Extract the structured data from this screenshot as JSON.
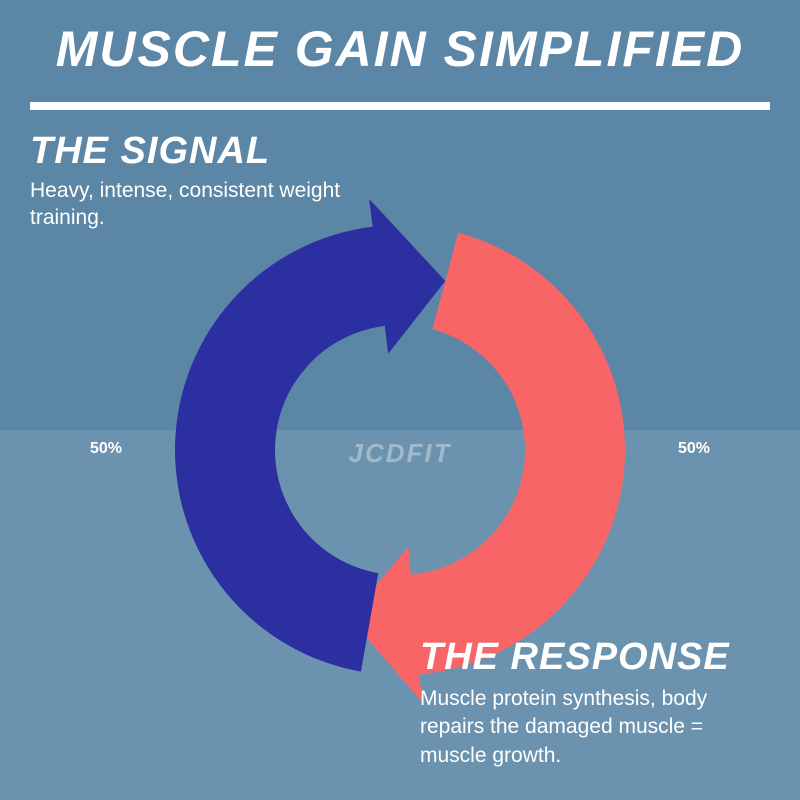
{
  "title": "MUSCLE GAIN SIMPLIFIED",
  "title_fontsize": 50,
  "signal": {
    "heading": "THE SIGNAL",
    "heading_fontsize": 38,
    "desc": "Heavy, intense, consistent weight training.",
    "desc_fontsize": 21
  },
  "response": {
    "heading": "THE RESPONSE",
    "heading_fontsize": 38,
    "desc": "Muscle protein synthesis, body repairs the damaged muscle = muscle growth.",
    "desc_fontsize": 21
  },
  "percent_left": "50%",
  "percent_right": "50%",
  "percent_fontsize": 16,
  "center_logo": "JCDFIT",
  "center_logo_fontsize": 26,
  "colors": {
    "bg_top": "#5c86a5",
    "bg_bottom": "#6b93af",
    "text": "#ffffff",
    "logo": "#a2b9c9",
    "signal_arrow": "#2c2fa0",
    "response_arrow": "#f86567",
    "divider": "#ffffff"
  },
  "cycle": {
    "outer_radius": 225,
    "inner_radius": 125,
    "arrow_head_length": 80
  }
}
